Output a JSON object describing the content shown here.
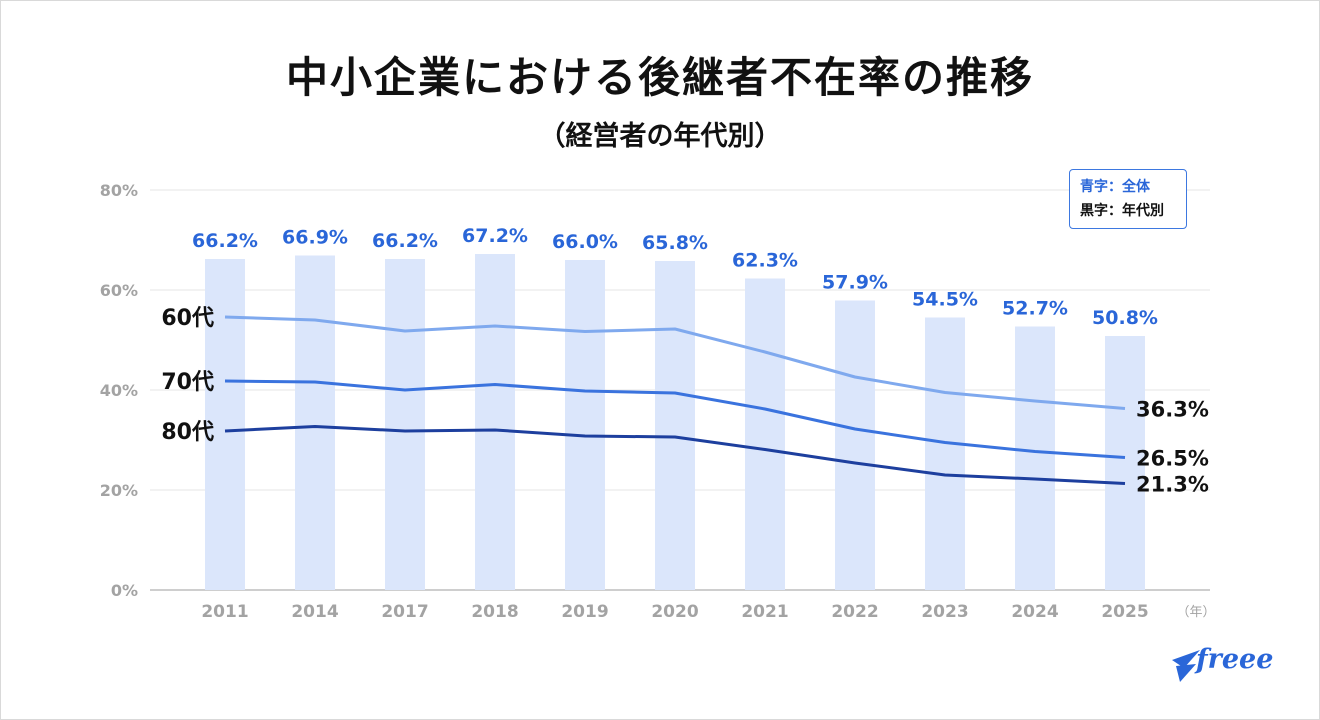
{
  "title": "中小企業における後継者不在率の推移",
  "subtitle": "（経営者の年代別）",
  "legend": {
    "overall_label": "青字：全体",
    "by_age_label": "黒字：年代別"
  },
  "logo_text": "freee",
  "colors": {
    "bar": "#dbe6fb",
    "overall_text": "#2a66d8",
    "line_60s": "#7fa9ee",
    "line_70s": "#3a73de",
    "line_80s": "#1d3f9e",
    "axis_text": "#a3a3a3",
    "grid": "#e6e6e6"
  },
  "chart_data": {
    "type": "bar",
    "categories": [
      "2011",
      "2014",
      "2017",
      "2018",
      "2019",
      "2020",
      "2021",
      "2022",
      "2023",
      "2024",
      "2025"
    ],
    "x_unit": "（年）",
    "ylim": [
      0,
      80
    ],
    "yticks": [
      "0%",
      "20%",
      "40%",
      "60%",
      "80%"
    ],
    "grid": true,
    "bar_series": {
      "values": [
        66.2,
        66.9,
        66.2,
        67.2,
        66.0,
        65.8,
        62.3,
        57.9,
        54.5,
        52.7,
        50.8
      ],
      "labels": [
        "66.2%",
        "66.9%",
        "66.2%",
        "67.2%",
        "66.0%",
        "65.8%",
        "62.3%",
        "57.9%",
        "54.5%",
        "52.7%",
        "50.8%"
      ]
    },
    "line_series": [
      {
        "name": "60代",
        "values": [
          54.6,
          54.0,
          51.8,
          52.8,
          51.7,
          52.2,
          47.6,
          42.6,
          39.5,
          37.8,
          36.3
        ],
        "end_label": "36.3%"
      },
      {
        "name": "70代",
        "values": [
          41.8,
          41.6,
          40.0,
          41.1,
          39.8,
          39.4,
          36.2,
          32.2,
          29.5,
          27.7,
          26.5
        ],
        "end_label": "26.5%"
      },
      {
        "name": "80代",
        "values": [
          31.8,
          32.7,
          31.8,
          32.0,
          30.8,
          30.6,
          28.1,
          25.4,
          23.0,
          22.2,
          21.3
        ],
        "end_label": "21.3%"
      }
    ]
  }
}
